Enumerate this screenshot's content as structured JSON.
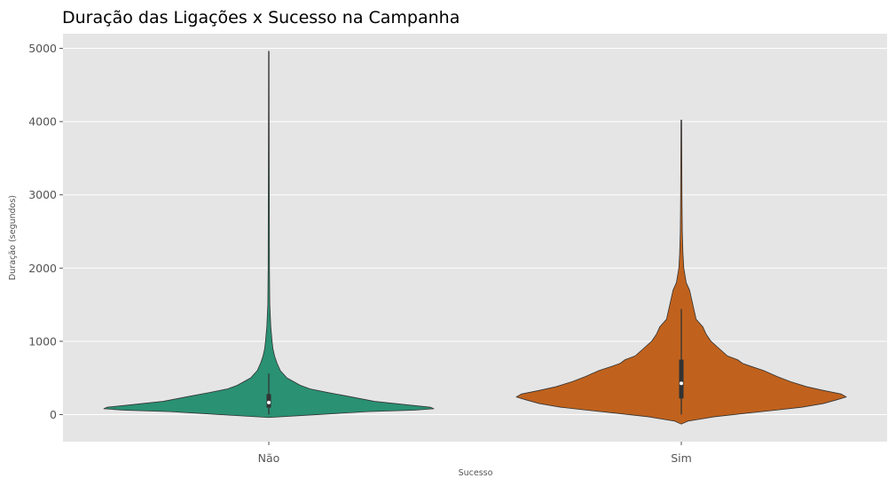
{
  "chart_data": {
    "type": "violin",
    "title": "Duração das Ligações x Sucesso na Campanha",
    "xlabel": "Sucesso",
    "ylabel": "Duração (segundos)",
    "ylim": [
      -370,
      5200
    ],
    "yticks": [
      0,
      1000,
      2000,
      3000,
      4000,
      5000
    ],
    "categories": [
      "Não",
      "Sim"
    ],
    "grid": true,
    "background": "#e5e5e5",
    "series": [
      {
        "category": "Não",
        "color": "#2a9173",
        "min": 0,
        "max": 4918,
        "q1": 95,
        "median": 165,
        "q3": 280,
        "whisker_low": 0,
        "whisker_high": 560,
        "profile": [
          [
            -40,
            0.0
          ],
          [
            0,
            0.3
          ],
          [
            40,
            0.6
          ],
          [
            60,
            0.88
          ],
          [
            80,
            1.0
          ],
          [
            100,
            0.98
          ],
          [
            130,
            0.85
          ],
          [
            180,
            0.64
          ],
          [
            250,
            0.48
          ],
          [
            300,
            0.36
          ],
          [
            350,
            0.25
          ],
          [
            400,
            0.19
          ],
          [
            450,
            0.15
          ],
          [
            500,
            0.11
          ],
          [
            550,
            0.09
          ],
          [
            600,
            0.07
          ],
          [
            700,
            0.05
          ],
          [
            800,
            0.035
          ],
          [
            900,
            0.025
          ],
          [
            1000,
            0.02
          ],
          [
            1200,
            0.012
          ],
          [
            1500,
            0.006
          ],
          [
            2000,
            0.004
          ],
          [
            3000,
            0.003
          ],
          [
            4000,
            0.002
          ],
          [
            4960,
            0.0015
          ]
        ]
      },
      {
        "category": "Sim",
        "color": "#c0621d",
        "min": 0,
        "max": 3881,
        "q1": 220,
        "median": 426,
        "q3": 750,
        "whisker_low": 0,
        "whisker_high": 1440,
        "profile": [
          [
            -130,
            0.0
          ],
          [
            -90,
            0.04
          ],
          [
            -30,
            0.2
          ],
          [
            20,
            0.4
          ],
          [
            60,
            0.57
          ],
          [
            100,
            0.73
          ],
          [
            150,
            0.86
          ],
          [
            200,
            0.94
          ],
          [
            240,
            1.0
          ],
          [
            280,
            0.97
          ],
          [
            330,
            0.86
          ],
          [
            380,
            0.76
          ],
          [
            450,
            0.66
          ],
          [
            520,
            0.58
          ],
          [
            600,
            0.5
          ],
          [
            660,
            0.42
          ],
          [
            700,
            0.37
          ],
          [
            750,
            0.34
          ],
          [
            800,
            0.28
          ],
          [
            900,
            0.23
          ],
          [
            1000,
            0.18
          ],
          [
            1100,
            0.15
          ],
          [
            1200,
            0.13
          ],
          [
            1300,
            0.09
          ],
          [
            1500,
            0.07
          ],
          [
            1700,
            0.05
          ],
          [
            1800,
            0.03
          ],
          [
            2000,
            0.015
          ],
          [
            2200,
            0.01
          ],
          [
            2500,
            0.006
          ],
          [
            3000,
            0.004
          ],
          [
            3500,
            0.003
          ],
          [
            4020,
            0.002
          ]
        ]
      }
    ]
  }
}
